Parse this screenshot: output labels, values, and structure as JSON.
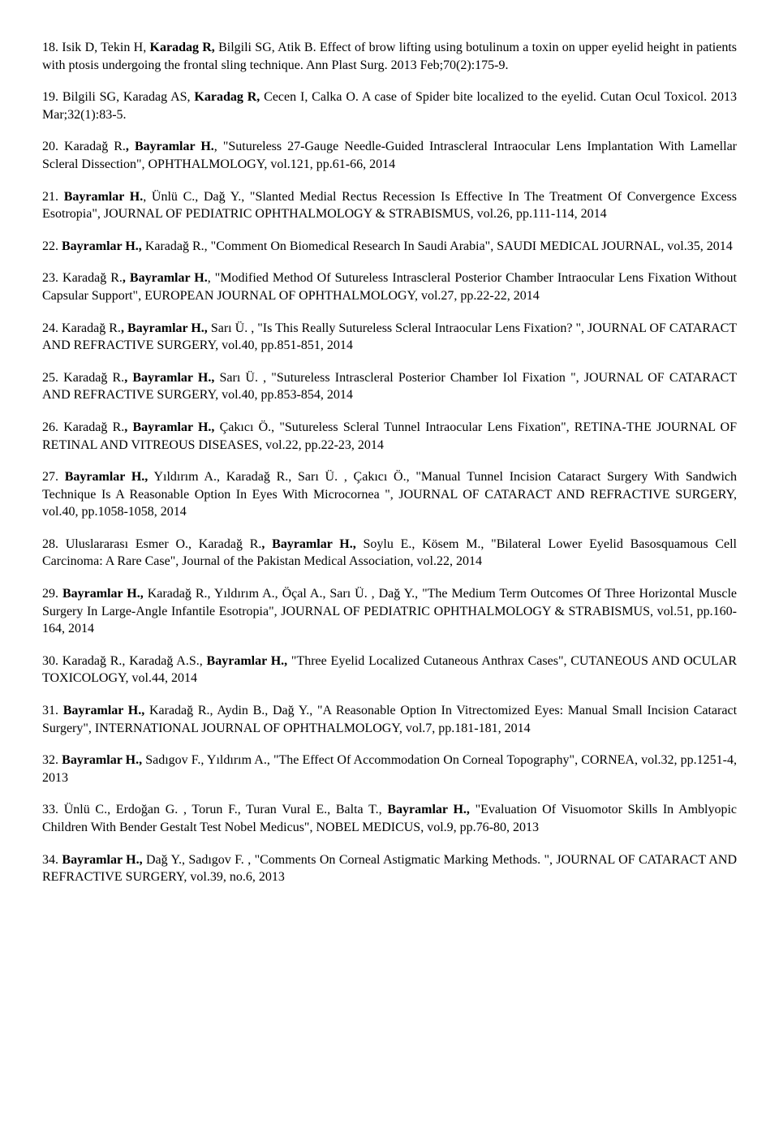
{
  "refs": [
    {
      "num": "18",
      "parts": [
        {
          "t": "18. Isik D, Tekin H, "
        },
        {
          "t": "Karadag R,",
          "b": 1
        },
        {
          "t": " Bilgili SG, Atik B. Effect of brow lifting using botulinum a toxin on upper eyelid height in patients with ptosis undergoing the frontal sling technique. Ann Plast Surg. 2013 Feb;70(2):175-9."
        }
      ]
    },
    {
      "num": "19",
      "parts": [
        {
          "t": "19. Bilgili SG, Karadag AS, "
        },
        {
          "t": "Karadag R,",
          "b": 1
        },
        {
          "t": " Cecen I, Calka O. A case of Spider bite localized to the eyelid. Cutan Ocul Toxicol. 2013 Mar;32(1):83-5."
        }
      ]
    },
    {
      "num": "20",
      "parts": [
        {
          "t": "20. Karadağ R."
        },
        {
          "t": ", Bayramlar H.",
          "b": 1
        },
        {
          "t": ", \"Sutureless 27-Gauge Needle-Guided Intrascleral Intraocular Lens Implantation With Lamellar Scleral Dissection\", OPHTHALMOLOGY, vol.121, pp.61-66, 2014"
        }
      ]
    },
    {
      "num": "21",
      "parts": [
        {
          "t": "21. "
        },
        {
          "t": "Bayramlar H.",
          "b": 1
        },
        {
          "t": ", Ünlü C., Dağ Y., \"Slanted Medial Rectus Recession Is Effective In The Treatment Of Convergence Excess Esotropia\", JOURNAL OF PEDIATRIC OPHTHALMOLOGY & STRABISMUS, vol.26, pp.111-114, 2014"
        }
      ]
    },
    {
      "num": "22",
      "parts": [
        {
          "t": "22. "
        },
        {
          "t": "Bayramlar H.,",
          "b": 1
        },
        {
          "t": " Karadağ R., \"Comment On Biomedical Research In Saudi Arabia\", SAUDI MEDICAL JOURNAL, vol.35, 2014"
        }
      ]
    },
    {
      "num": "23",
      "parts": [
        {
          "t": "23. Karadağ R."
        },
        {
          "t": ", Bayramlar H.",
          "b": 1
        },
        {
          "t": ", \"Modified Method Of Sutureless Intrascleral Posterior Chamber Intraocular Lens Fixation Without Capsular Support\", EUROPEAN JOURNAL OF OPHTHALMOLOGY, vol.27, pp.22-22, 2014"
        }
      ]
    },
    {
      "num": "24",
      "parts": [
        {
          "t": "24. Karadağ R."
        },
        {
          "t": ", Bayramlar H.,",
          "b": 1
        },
        {
          "t": " Sarı Ü. , \"Is This Really Sutureless Scleral Intraocular Lens Fixation? \", JOURNAL OF CATARACT AND REFRACTIVE SURGERY, vol.40, pp.851-851, 2014"
        }
      ]
    },
    {
      "num": "25",
      "parts": [
        {
          "t": "25. Karadağ R."
        },
        {
          "t": ", Bayramlar H.,",
          "b": 1
        },
        {
          "t": " Sarı Ü. , \"Sutureless Intrascleral Posterior Chamber Iol Fixation \", JOURNAL OF CATARACT AND REFRACTIVE SURGERY, vol.40, pp.853-854, 2014"
        }
      ]
    },
    {
      "num": "26",
      "parts": [
        {
          "t": "26. Karadağ R."
        },
        {
          "t": ", Bayramlar H.,",
          "b": 1
        },
        {
          "t": " Çakıcı Ö., \"Sutureless Scleral Tunnel Intraocular Lens Fixation\", RETINA-THE JOURNAL OF RETINAL AND VITREOUS DISEASES, vol.22, pp.22-23, 2014"
        }
      ]
    },
    {
      "num": "27",
      "parts": [
        {
          "t": "27. "
        },
        {
          "t": "Bayramlar H.,",
          "b": 1
        },
        {
          "t": " Yıldırım A., Karadağ R., Sarı Ü. , Çakıcı Ö., \"Manual Tunnel Incision Cataract Surgery With Sandwich Technique Is A Reasonable Option In Eyes With Microcornea \", JOURNAL OF CATARACT AND REFRACTIVE SURGERY, vol.40, pp.1058-1058, 2014"
        }
      ]
    },
    {
      "num": "28",
      "parts": [
        {
          "t": "28. Uluslararası Esmer O., Karadağ R."
        },
        {
          "t": ", Bayramlar H.,",
          "b": 1
        },
        {
          "t": " Soylu E., Kösem M., \"Bilateral Lower Eyelid Basosquamous Cell Carcinoma: A Rare Case\", Journal of the Pakistan Medical Association, vol.22, 2014"
        }
      ]
    },
    {
      "num": "29",
      "parts": [
        {
          "t": "29. "
        },
        {
          "t": "Bayramlar H.,",
          "b": 1
        },
        {
          "t": " Karadağ R., Yıldırım A., Öçal A., Sarı Ü. , Dağ Y., \"The Medium Term Outcomes Of Three Horizontal Muscle Surgery In Large-Angle Infantile Esotropia\", JOURNAL OF PEDIATRIC OPHTHALMOLOGY & STRABISMUS, vol.51, pp.160-164, 2014"
        }
      ]
    },
    {
      "num": "30",
      "parts": [
        {
          "t": "30. Karadağ R., Karadağ A.S., "
        },
        {
          "t": "Bayramlar H.,",
          "b": 1
        },
        {
          "t": " \"Three Eyelid Localized Cutaneous Anthrax Cases\", CUTANEOUS AND OCULAR TOXICOLOGY, vol.44, 2014"
        }
      ]
    },
    {
      "num": "31",
      "parts": [
        {
          "t": "31. "
        },
        {
          "t": "Bayramlar H.,",
          "b": 1
        },
        {
          "t": " Karadağ R., Aydin B., Dağ Y., \"A Reasonable Option In Vitrectomized Eyes: Manual Small Incision Cataract Surgery\", INTERNATIONAL JOURNAL OF OPHTHALMOLOGY, vol.7, pp.181-181, 2014"
        }
      ]
    },
    {
      "num": "32",
      "parts": [
        {
          "t": "32. "
        },
        {
          "t": "Bayramlar H.,",
          "b": 1
        },
        {
          "t": " Sadıgov F., Yıldırım A., \"The Effect Of Accommodation On Corneal Topography\", CORNEA, vol.32, pp.1251-4, 2013"
        }
      ]
    },
    {
      "num": "33",
      "parts": [
        {
          "t": "33. Ünlü C., Erdoğan G. , Torun F., Turan Vural E., Balta T., "
        },
        {
          "t": "Bayramlar H.,",
          "b": 1
        },
        {
          "t": " \"Evaluation Of Visuomotor Skills In Amblyopic Children With Bender Gestalt Test Nobel Medicus\", NOBEL MEDICUS, vol.9, pp.76-80, 2013"
        }
      ]
    },
    {
      "num": "34",
      "parts": [
        {
          "t": "34. "
        },
        {
          "t": "Bayramlar H.,",
          "b": 1
        },
        {
          "t": " Dağ Y., Sadıgov F. , \"Comments On Corneal Astigmatic Marking Methods. \", JOURNAL OF CATARACT AND REFRACTIVE SURGERY, vol.39, no.6, 2013"
        }
      ]
    }
  ]
}
